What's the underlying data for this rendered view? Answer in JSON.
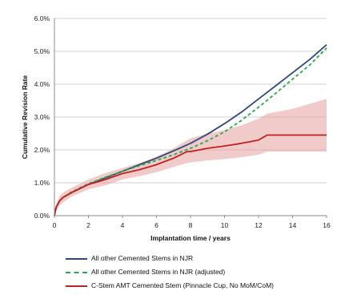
{
  "chart_data": {
    "type": "line",
    "title": "",
    "xlabel": "Implantation time  / years",
    "ylabel": "Cumulative Revision Rate",
    "xlim": [
      0,
      16
    ],
    "ylim": [
      0,
      6
    ],
    "x_ticks": [
      "0",
      "2",
      "4",
      "6",
      "8",
      "10",
      "12",
      "14",
      "16"
    ],
    "y_ticks": [
      "0.0%",
      "1.0%",
      "2.0%",
      "3.0%",
      "4.0%",
      "5.0%",
      "6.0%"
    ],
    "grid": "horizontal",
    "legend_position": "bottom",
    "series": [
      {
        "name": "All other Cemented Stems in NJR",
        "color": "#2e4a7a",
        "style": "solid",
        "x": [
          0,
          0.1,
          0.3,
          0.5,
          1,
          2,
          3,
          4,
          5,
          6,
          7,
          8,
          9,
          10,
          11,
          12,
          13,
          14,
          15,
          16
        ],
        "y": [
          0,
          0.25,
          0.45,
          0.55,
          0.7,
          0.95,
          1.15,
          1.35,
          1.55,
          1.75,
          1.97,
          2.2,
          2.48,
          2.8,
          3.15,
          3.55,
          3.95,
          4.35,
          4.75,
          5.2
        ]
      },
      {
        "name": "All other Cemented Stems in NJR (adjusted)",
        "color": "#2aa84a",
        "style": "dashed",
        "x": [
          0,
          0.1,
          0.3,
          0.5,
          1,
          2,
          3,
          4,
          5,
          6,
          7,
          8,
          9,
          10,
          11,
          12,
          13,
          14,
          15,
          16
        ],
        "y": [
          0,
          0.25,
          0.45,
          0.55,
          0.72,
          0.97,
          1.17,
          1.35,
          1.52,
          1.68,
          1.85,
          2.05,
          2.28,
          2.55,
          2.9,
          3.3,
          3.72,
          4.15,
          4.58,
          5.1
        ]
      },
      {
        "name": "C-Stem AMT Cemented Stem (Pinnacle Cup, No MoM/CoM)",
        "color": "#c0221f",
        "style": "solid",
        "x": [
          0,
          0.1,
          0.3,
          0.5,
          1,
          2,
          3,
          4,
          5,
          6,
          7,
          7.8,
          8,
          9,
          10,
          11,
          12,
          12.5,
          14,
          16
        ],
        "y": [
          0,
          0.25,
          0.45,
          0.55,
          0.7,
          0.95,
          1.1,
          1.28,
          1.4,
          1.55,
          1.75,
          1.95,
          1.95,
          2.05,
          2.12,
          2.2,
          2.3,
          2.45,
          2.45,
          2.45
        ],
        "ci_upper": [
          0,
          0.35,
          0.6,
          0.7,
          0.85,
          1.1,
          1.3,
          1.45,
          1.6,
          1.8,
          2.05,
          2.3,
          2.35,
          2.5,
          2.6,
          2.75,
          2.95,
          3.1,
          3.25,
          3.55
        ],
        "ci_lower": [
          0,
          0.15,
          0.3,
          0.4,
          0.58,
          0.8,
          0.92,
          1.1,
          1.2,
          1.32,
          1.48,
          1.6,
          1.62,
          1.68,
          1.72,
          1.78,
          1.85,
          1.95,
          1.95,
          1.95
        ]
      }
    ]
  },
  "legend": {
    "items": [
      {
        "label": "All other Cemented Stems in NJR",
        "color": "#2e4a7a",
        "style": "solid"
      },
      {
        "label": "All other Cemented Stems in NJR (adjusted)",
        "color": "#2aa84a",
        "style": "dashed"
      },
      {
        "label": "C-Stem AMT Cemented Stem (Pinnacle Cup, No MoM/CoM)",
        "color": "#c0221f",
        "style": "solid"
      }
    ]
  }
}
